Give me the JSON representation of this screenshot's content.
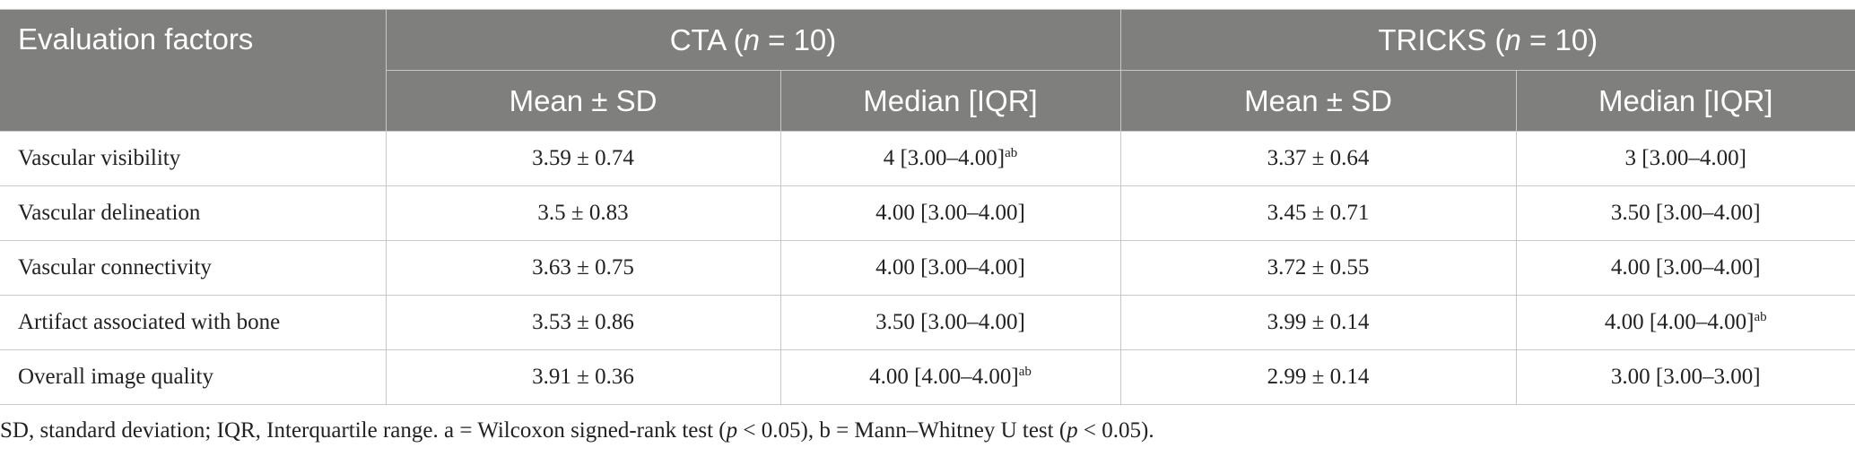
{
  "table": {
    "header": {
      "factor": "Evaluation factors",
      "groups": [
        [
          {
            "text": "CTA ("
          },
          {
            "text": "n",
            "italic": true
          },
          {
            "text": " = 10)"
          }
        ],
        [
          {
            "text": "TRICKS ("
          },
          {
            "text": "n",
            "italic": true
          },
          {
            "text": " = 10)"
          }
        ]
      ],
      "sub": [
        "Mean ± SD",
        "Median [IQR]",
        "Mean ± SD",
        "Median [IQR]"
      ]
    },
    "rows": [
      {
        "label": "Vascular visibility",
        "cells": [
          {
            "text": "3.59 ± 0.74"
          },
          {
            "text": "4 [3.00–4.00]",
            "sup": "ab"
          },
          {
            "text": "3.37 ± 0.64"
          },
          {
            "text": "3 [3.00–4.00]"
          }
        ]
      },
      {
        "label": "Vascular delineation",
        "cells": [
          {
            "text": "3.5 ± 0.83"
          },
          {
            "text": "4.00 [3.00–4.00]"
          },
          {
            "text": "3.45 ± 0.71"
          },
          {
            "text": "3.50 [3.00–4.00]"
          }
        ]
      },
      {
        "label": "Vascular connectivity",
        "cells": [
          {
            "text": "3.63 ± 0.75"
          },
          {
            "text": "4.00 [3.00–4.00]"
          },
          {
            "text": "3.72 ± 0.55"
          },
          {
            "text": "4.00 [3.00–4.00]"
          }
        ]
      },
      {
        "label": "Artifact associated with bone",
        "cells": [
          {
            "text": "3.53 ± 0.86"
          },
          {
            "text": "3.50 [3.00–4.00]"
          },
          {
            "text": "3.99 ± 0.14"
          },
          {
            "text": "4.00 [4.00–4.00]",
            "sup": "ab"
          }
        ]
      },
      {
        "label": "Overall image quality",
        "cells": [
          {
            "text": "3.91 ± 0.36"
          },
          {
            "text": "4.00 [4.00–4.00]",
            "sup": "ab"
          },
          {
            "text": "2.99 ± 0.14"
          },
          {
            "text": "3.00 [3.00–3.00]"
          }
        ]
      }
    ],
    "footnote": [
      {
        "text": "SD, standard deviation; IQR, Interquartile range. a = Wilcoxon signed-rank test ("
      },
      {
        "text": "p",
        "italic": true
      },
      {
        "text": " < 0.05), b = Mann–Whitney U test ("
      },
      {
        "text": "p",
        "italic": true
      },
      {
        "text": " < 0.05)."
      }
    ]
  }
}
